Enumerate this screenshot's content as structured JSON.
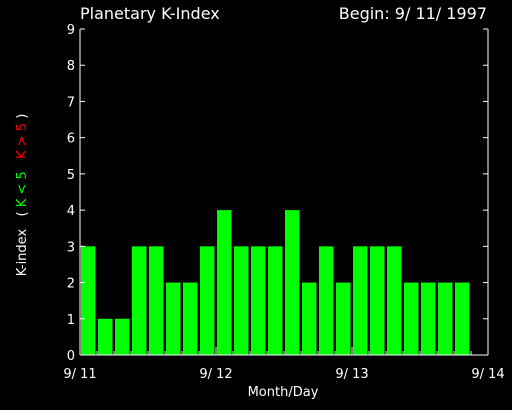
{
  "chart_data": {
    "type": "bar",
    "title": "Planetary K-Index",
    "subtitle": "Begin: 9/ 11/ 1997",
    "xlabel": "Month/Day",
    "ylabel": {
      "prefix": "K-index",
      "open": "(",
      "green_part": "K < 5",
      "red_part": "K > 5",
      "close": ")"
    },
    "ylim": [
      0,
      9
    ],
    "yticks": [
      0,
      1,
      2,
      3,
      4,
      5,
      6,
      7,
      8,
      9
    ],
    "xlim": [
      0,
      24
    ],
    "xtick_positions": [
      0,
      8,
      16,
      24
    ],
    "xticks": [
      "9/ 11",
      "9/ 12",
      "9/ 13",
      "9/ 14"
    ],
    "bar_width": 1,
    "values": [
      3,
      1,
      1,
      3,
      3,
      2,
      2,
      3,
      4,
      3,
      3,
      3,
      4,
      2,
      3,
      2,
      3,
      3,
      3,
      2,
      2,
      2,
      2
    ],
    "colors": {
      "background": "#000000",
      "axes": "#ffffff",
      "bar_low": "#00ff00",
      "bar_high": "#ff0000",
      "label_green": "#00ff00",
      "label_red": "#ff0000"
    }
  }
}
